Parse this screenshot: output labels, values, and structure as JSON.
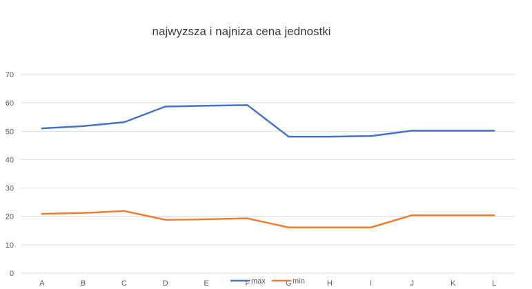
{
  "chart_data": {
    "type": "line",
    "title": "najwyzsza i najniza cena jednostki",
    "xlabel": "",
    "ylabel": "",
    "categories": [
      "A",
      "B",
      "C",
      "D",
      "E",
      "F",
      "G",
      "H",
      "I",
      "J",
      "K",
      "L"
    ],
    "series": [
      {
        "name": "max",
        "color": "#4472C4",
        "values": [
          51,
          51.8,
          53.2,
          58.7,
          59,
          59.2,
          48.1,
          48.1,
          48.3,
          50.2,
          50.2,
          50.2
        ]
      },
      {
        "name": "min",
        "color": "#ED7D31",
        "values": [
          20.9,
          21.2,
          21.9,
          18.8,
          19.0,
          19.3,
          16.1,
          16.1,
          16.1,
          20.4,
          20.4,
          20.4
        ]
      }
    ],
    "ylim": [
      0,
      70
    ],
    "yticks": [
      "0",
      "10",
      "20",
      "30",
      "40",
      "50",
      "60",
      "70"
    ],
    "grid": true,
    "legend_position": "bottom"
  }
}
